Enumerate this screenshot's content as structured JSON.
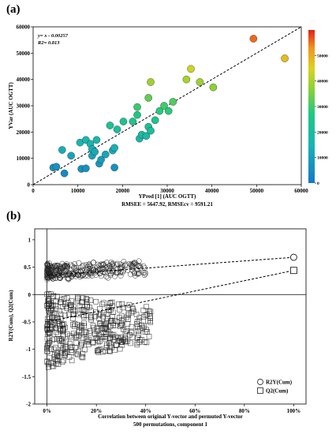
{
  "chart_data": [
    {
      "panel_label": "(a)",
      "type": "scatter",
      "equation": "y= x - 0.00257",
      "r2_text": "R2= 0.813",
      "xlabel": "YPred [1] (AUC OGTT)",
      "ylabel": "YVar (AUC OGTT)",
      "subtitle": "RMSEE = 5647.92, RMSEcv = 9591.21",
      "xlim": [
        0,
        60000
      ],
      "ylim": [
        0,
        60000
      ],
      "xticks": [
        0,
        10000,
        20000,
        30000,
        40000,
        50000,
        60000
      ],
      "yticks": [
        0,
        10000,
        20000,
        30000,
        40000,
        50000,
        60000
      ],
      "colorbar_ticks": [
        0,
        10000,
        20000,
        30000,
        40000,
        50000
      ],
      "colorbar_range": [
        0,
        60000
      ],
      "points": [
        {
          "x": 4500,
          "y": 6500
        },
        {
          "x": 5200,
          "y": 6800
        },
        {
          "x": 6500,
          "y": 13200
        },
        {
          "x": 7000,
          "y": 4300
        },
        {
          "x": 8500,
          "y": 11000
        },
        {
          "x": 10500,
          "y": 16000
        },
        {
          "x": 10800,
          "y": 6000
        },
        {
          "x": 11800,
          "y": 17000
        },
        {
          "x": 11800,
          "y": 6200
        },
        {
          "x": 12800,
          "y": 15500
        },
        {
          "x": 13200,
          "y": 11000
        },
        {
          "x": 13200,
          "y": 13500
        },
        {
          "x": 13800,
          "y": 12500
        },
        {
          "x": 14200,
          "y": 17000
        },
        {
          "x": 14800,
          "y": 8000
        },
        {
          "x": 15200,
          "y": 9500
        },
        {
          "x": 16200,
          "y": 11500
        },
        {
          "x": 17200,
          "y": 22500
        },
        {
          "x": 17800,
          "y": 13000
        },
        {
          "x": 18200,
          "y": 14000
        },
        {
          "x": 18200,
          "y": 6500
        },
        {
          "x": 18800,
          "y": 21000
        },
        {
          "x": 20200,
          "y": 24000
        },
        {
          "x": 22300,
          "y": 24000
        },
        {
          "x": 23300,
          "y": 26500
        },
        {
          "x": 23300,
          "y": 29500
        },
        {
          "x": 23800,
          "y": 17500
        },
        {
          "x": 24300,
          "y": 19000
        },
        {
          "x": 25300,
          "y": 18500
        },
        {
          "x": 25800,
          "y": 33000
        },
        {
          "x": 25800,
          "y": 22000
        },
        {
          "x": 26300,
          "y": 20500
        },
        {
          "x": 26300,
          "y": 39000
        },
        {
          "x": 27300,
          "y": 24500
        },
        {
          "x": 28300,
          "y": 28000
        },
        {
          "x": 29300,
          "y": 30000
        },
        {
          "x": 30300,
          "y": 28000
        },
        {
          "x": 31300,
          "y": 31500
        },
        {
          "x": 34300,
          "y": 40000
        },
        {
          "x": 35300,
          "y": 44000
        },
        {
          "x": 37300,
          "y": 39000
        },
        {
          "x": 40300,
          "y": 37000
        },
        {
          "x": 49300,
          "y": 55500
        },
        {
          "x": 56300,
          "y": 48000
        }
      ]
    },
    {
      "panel_label": "(b)",
      "type": "scatter",
      "xlabel": "Correlation between original Y-vector and permuted Y-vector",
      "subtitle": "500 permutations, component 1",
      "ylabel": "R2Y(Cum), Q2(Cum)",
      "xlim": [
        -5,
        105
      ],
      "ylim": [
        -2,
        1.2
      ],
      "xticks": [
        "0%",
        "20%",
        "40%",
        "60%",
        "80%",
        "100%"
      ],
      "yticks": [
        -2,
        -1.5,
        -1,
        -0.5,
        0,
        0.5,
        1
      ],
      "series": [
        {
          "name": "R2Y(Cum)",
          "marker": "circle",
          "original": {
            "x": 100,
            "y": 0.68
          },
          "fit_intercept_y": 0.35
        },
        {
          "name": "Q2(Cum)",
          "marker": "square",
          "original": {
            "x": 100,
            "y": 0.44
          },
          "fit_intercept_y": -0.5
        }
      ]
    }
  ]
}
